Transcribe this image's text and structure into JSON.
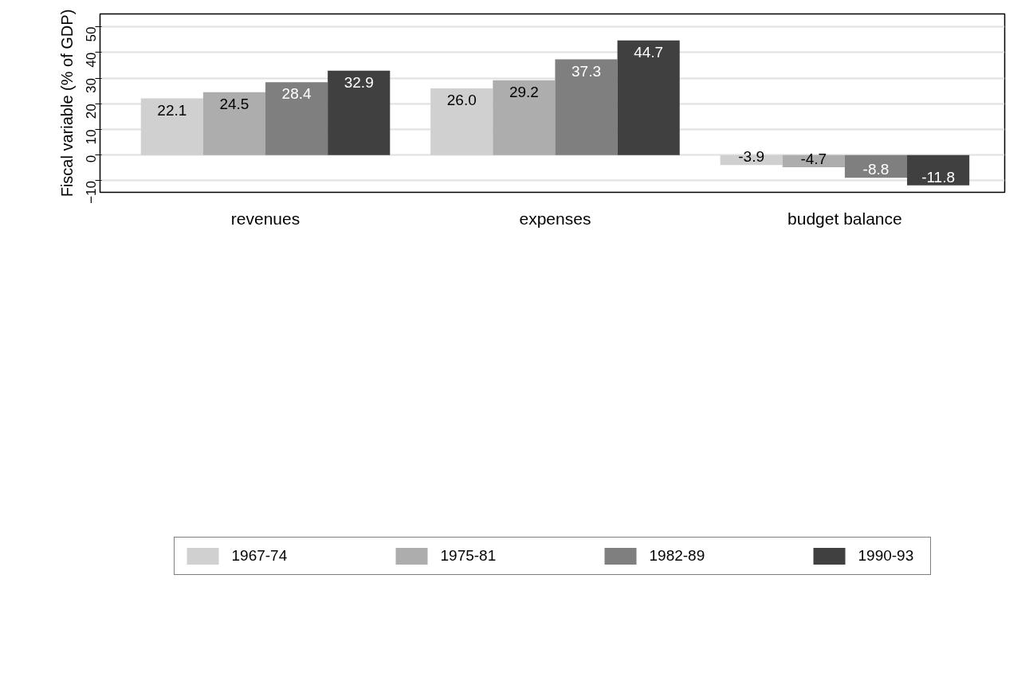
{
  "chart_data": {
    "type": "bar",
    "ylabel": "Fiscal variable (% of GDP)",
    "categories": [
      "revenues",
      "expenses",
      "budget balance"
    ],
    "series": [
      {
        "name": "1967-74",
        "color": "#d0d0d0",
        "values": [
          22.1,
          26.0,
          -3.9
        ],
        "value_labels": [
          "22.1",
          "26.0",
          "-3.9"
        ]
      },
      {
        "name": "1975-81",
        "color": "#adadad",
        "values": [
          24.5,
          29.2,
          -4.7
        ],
        "value_labels": [
          "24.5",
          "29.2",
          "-4.7"
        ]
      },
      {
        "name": "1982-89",
        "color": "#7f7f7f",
        "values": [
          28.4,
          37.3,
          -8.8
        ],
        "value_labels": [
          "28.4",
          "37.3",
          "-8.8"
        ]
      },
      {
        "name": "1990-93",
        "color": "#404040",
        "values": [
          32.9,
          44.7,
          -11.8
        ],
        "value_labels": [
          "32.9",
          "44.7",
          "-11.8"
        ]
      }
    ],
    "ylim": [
      -14.5,
      55
    ],
    "yticks": [
      -10,
      0,
      10,
      20,
      30,
      40,
      50
    ],
    "grid": "y",
    "legend": "bottom"
  }
}
